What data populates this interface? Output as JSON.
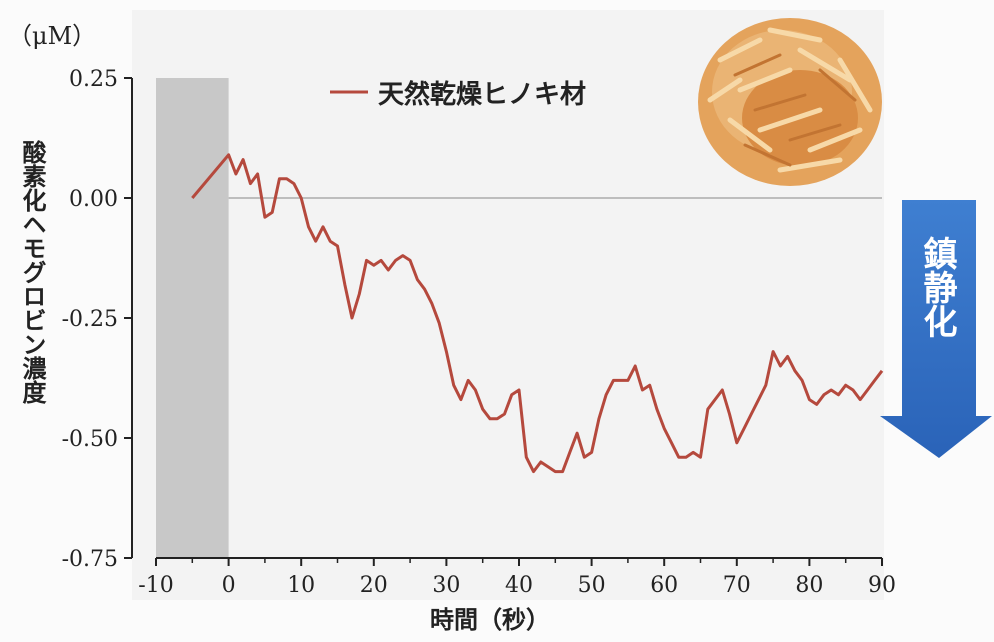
{
  "chart_data": {
    "type": "line",
    "unit_label": "（μM）",
    "ylabel": "酸素化ヘモグロビン濃度",
    "xlabel": "時間（秒）",
    "xlim": [
      -10,
      90
    ],
    "ylim": [
      -0.75,
      0.25
    ],
    "x_ticks": [
      "-10",
      "0",
      "10",
      "20",
      "30",
      "40",
      "50",
      "60",
      "70",
      "80",
      "90"
    ],
    "y_ticks": [
      "0.25",
      "0.00",
      "-0.25",
      "-0.50",
      "-0.75"
    ],
    "baseline": 0.0,
    "shaded_region": [
      -10,
      0
    ],
    "annotation": "鎮静化",
    "legend_position": "top-center",
    "series": [
      {
        "name": "天然乾燥ヒノキ材",
        "color": "#b5493d",
        "x": [
          -5,
          0,
          1,
          2,
          3,
          4,
          5,
          6,
          7,
          8,
          9,
          10,
          11,
          12,
          13,
          14,
          15,
          16,
          17,
          18,
          19,
          20,
          21,
          22,
          23,
          24,
          25,
          26,
          27,
          28,
          29,
          30,
          31,
          32,
          33,
          34,
          35,
          36,
          37,
          38,
          39,
          40,
          41,
          42,
          43,
          44,
          45,
          46,
          47,
          48,
          49,
          50,
          51,
          52,
          53,
          54,
          55,
          56,
          57,
          58,
          59,
          60,
          61,
          62,
          63,
          64,
          65,
          66,
          67,
          68,
          69,
          70,
          71,
          72,
          73,
          74,
          75,
          76,
          77,
          78,
          79,
          80,
          81,
          82,
          83,
          84,
          85,
          86,
          87,
          88,
          89,
          90
        ],
        "values": [
          0.0,
          0.09,
          0.05,
          0.08,
          0.03,
          0.05,
          -0.04,
          -0.03,
          0.04,
          0.04,
          0.03,
          0.0,
          -0.06,
          -0.09,
          -0.06,
          -0.09,
          -0.1,
          -0.18,
          -0.25,
          -0.2,
          -0.13,
          -0.14,
          -0.13,
          -0.15,
          -0.13,
          -0.12,
          -0.13,
          -0.17,
          -0.19,
          -0.22,
          -0.26,
          -0.32,
          -0.39,
          -0.42,
          -0.38,
          -0.4,
          -0.44,
          -0.46,
          -0.46,
          -0.45,
          -0.41,
          -0.4,
          -0.54,
          -0.57,
          -0.55,
          -0.56,
          -0.57,
          -0.57,
          -0.53,
          -0.49,
          -0.54,
          -0.53,
          -0.46,
          -0.41,
          -0.38,
          -0.38,
          -0.38,
          -0.35,
          -0.4,
          -0.39,
          -0.44,
          -0.48,
          -0.51,
          -0.54,
          -0.54,
          -0.53,
          -0.54,
          -0.44,
          -0.42,
          -0.4,
          -0.45,
          -0.51,
          -0.48,
          -0.45,
          -0.42,
          -0.39,
          -0.32,
          -0.35,
          -0.33,
          -0.36,
          -0.38,
          -0.42,
          -0.43,
          -0.41,
          -0.4,
          -0.41,
          -0.39,
          -0.4,
          -0.42,
          -0.4,
          -0.38,
          -0.36
        ]
      }
    ]
  }
}
